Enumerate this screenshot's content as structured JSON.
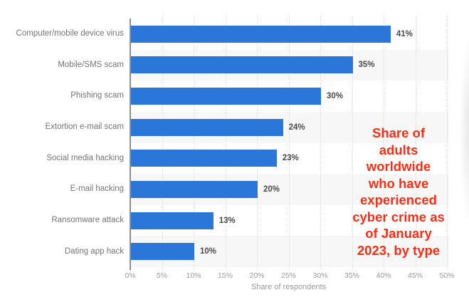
{
  "chart_data": {
    "type": "bar",
    "orientation": "horizontal",
    "title": "Share of adults worldwide who have experienced cyber crime as of January 2023, by type",
    "annotation_text": "Share of\nadults\nworldwide\nwho have\nexperienced\ncyber crime as\nof January\n2023, by type",
    "annotation_color": "#fb2d14",
    "categories": [
      "Computer/mobile device virus",
      "Mobile/SMS scam",
      "Phishing scam",
      "Extortion e-mail scam",
      "Social media hacking",
      "E-mail hacking",
      "Ransomware attack",
      "Dating app hack"
    ],
    "values": [
      41,
      35,
      30,
      24,
      23,
      20,
      13,
      10
    ],
    "value_labels": [
      "41%",
      "35%",
      "30%",
      "24%",
      "23%",
      "20%",
      "13%",
      "10%"
    ],
    "xlabel": "Share of respondents",
    "ylabel": "",
    "xlim": [
      0,
      50
    ],
    "xticks": [
      "0%",
      "5%",
      "10%",
      "15%",
      "20%",
      "25%",
      "30%",
      "35%",
      "40%",
      "45%",
      "50%"
    ],
    "grid": "vertical-dotted",
    "legend": "none",
    "bar_color": "#2b76d9",
    "band_color": "#f7f7f7"
  }
}
